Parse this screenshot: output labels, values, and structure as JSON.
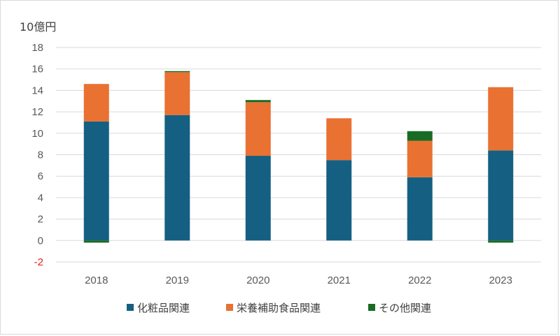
{
  "chart_data": {
    "type": "bar",
    "stacked": true,
    "unit_label": "10億円",
    "categories": [
      "2018",
      "2019",
      "2020",
      "2021",
      "2022",
      "2023"
    ],
    "ylim": [
      -2,
      18
    ],
    "yticks": [
      -2,
      0,
      2,
      4,
      6,
      8,
      10,
      12,
      14,
      16,
      18
    ],
    "grid": true,
    "legend_position": "bottom",
    "series": [
      {
        "name": "化粧品関連",
        "color": "#156082",
        "values": [
          11.1,
          11.7,
          7.9,
          7.5,
          5.9,
          8.4
        ]
      },
      {
        "name": "栄養補助食品関連",
        "color": "#e97132",
        "values": [
          3.5,
          4.0,
          5.0,
          3.9,
          3.4,
          5.9
        ]
      },
      {
        "name": "その他関連",
        "color": "#196b24",
        "values": [
          -0.2,
          0.1,
          0.2,
          0.0,
          0.9,
          -0.2
        ]
      }
    ]
  }
}
